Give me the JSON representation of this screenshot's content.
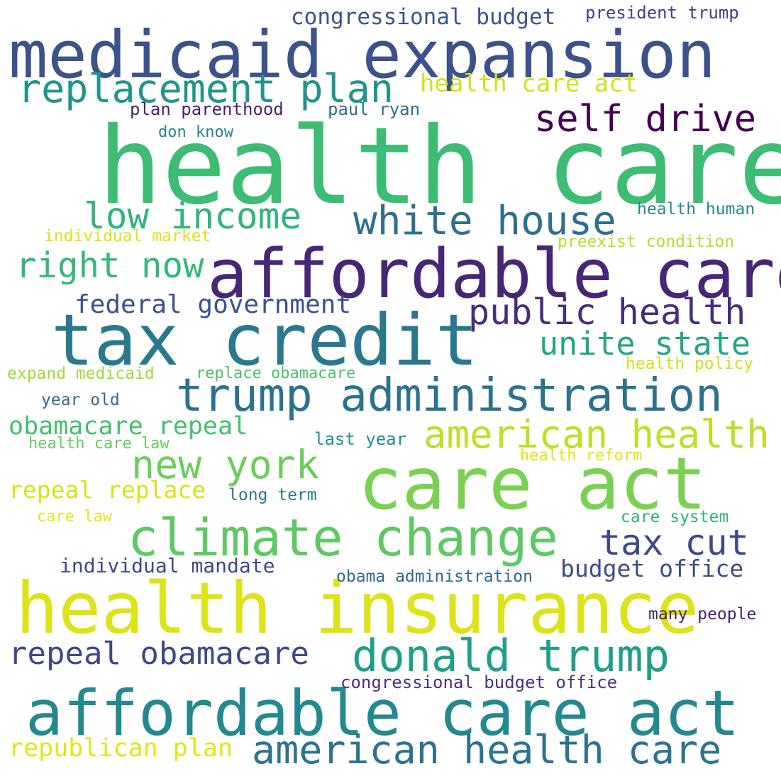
{
  "words": [
    {
      "text": "health care",
      "color": "#3dbc74"
    },
    {
      "text": "medicaid expansion",
      "color": "#3b528b"
    },
    {
      "text": "affordable care",
      "color": "#482677"
    },
    {
      "text": "tax credit",
      "color": "#2a788e"
    },
    {
      "text": "care act",
      "color": "#7ad151"
    },
    {
      "text": "health insurance",
      "color": "#dde318"
    },
    {
      "text": "affordable care act",
      "color": "#23898e"
    },
    {
      "text": "climate change",
      "color": "#5ec962"
    },
    {
      "text": "trump administration",
      "color": "#2c728e"
    },
    {
      "text": "replacement plan",
      "color": "#1f948c"
    },
    {
      "text": "white house",
      "color": "#2d708e"
    },
    {
      "text": "american health",
      "color": "#bddf26"
    },
    {
      "text": "donald trump",
      "color": "#1f9e89"
    },
    {
      "text": "american health care",
      "color": "#2c738e"
    },
    {
      "text": "public health",
      "color": "#472d7b"
    },
    {
      "text": "self drive",
      "color": "#440154"
    },
    {
      "text": "low income",
      "color": "#2fb47c"
    },
    {
      "text": "new york",
      "color": "#6ccd5a"
    },
    {
      "text": "unite state",
      "color": "#21a685"
    },
    {
      "text": "tax cut",
      "color": "#3e4a89"
    },
    {
      "text": "right now",
      "color": "#35b779"
    },
    {
      "text": "repeal obamacare",
      "color": "#3f4889"
    },
    {
      "text": "federal government",
      "color": "#3b528b"
    },
    {
      "text": "obamacare repeal",
      "color": "#44bf70"
    },
    {
      "text": "republican plan",
      "color": "#e5e419"
    },
    {
      "text": "health care act",
      "color": "#d2e21b"
    },
    {
      "text": "repeal replace",
      "color": "#d8e219"
    },
    {
      "text": "budget office",
      "color": "#3e4c8a"
    },
    {
      "text": "congressional budget",
      "color": "#39558c"
    },
    {
      "text": "individual mandate",
      "color": "#3f4788"
    },
    {
      "text": "congressional budget office",
      "color": "#46327e"
    },
    {
      "text": "president trump",
      "color": "#433e85"
    },
    {
      "text": "plan parenthood",
      "color": "#481f70"
    },
    {
      "text": "paul ryan",
      "color": "#2d708e"
    },
    {
      "text": "don know",
      "color": "#25848e"
    },
    {
      "text": "health human",
      "color": "#238a8d"
    },
    {
      "text": "individual market",
      "color": "#dde318"
    },
    {
      "text": "preexist condition",
      "color": "#b5de2b"
    },
    {
      "text": "expand medicaid",
      "color": "#a0da39"
    },
    {
      "text": "replace obamacare",
      "color": "#4ac16d"
    },
    {
      "text": "health policy",
      "color": "#d0e11c"
    },
    {
      "text": "year old",
      "color": "#306a8e"
    },
    {
      "text": "last year",
      "color": "#21918c"
    },
    {
      "text": "health care law",
      "color": "#65cb5e"
    },
    {
      "text": "health reform",
      "color": "#e2e418"
    },
    {
      "text": "long term",
      "color": "#2a778e"
    },
    {
      "text": "care law",
      "color": "#e7e419"
    },
    {
      "text": "care system",
      "color": "#2db27d"
    },
    {
      "text": "obama administration",
      "color": "#31688e"
    },
    {
      "text": "many people",
      "color": "#482173"
    }
  ]
}
